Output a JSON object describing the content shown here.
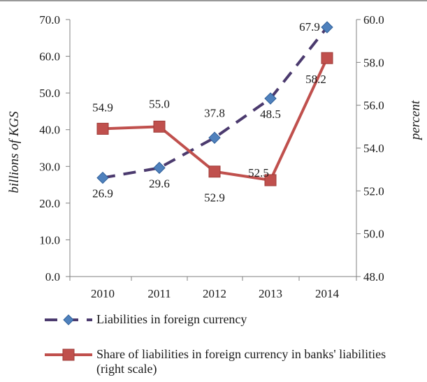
{
  "chart_data": {
    "type": "line",
    "categories": [
      "2010",
      "2011",
      "2012",
      "2013",
      "2014"
    ],
    "y_left": {
      "label": "billions of KGS",
      "lim": [
        0,
        70
      ],
      "ticks": [
        "0.0",
        "10.0",
        "20.0",
        "30.0",
        "40.0",
        "50.0",
        "60.0",
        "70.0"
      ]
    },
    "y_right": {
      "label": "percent",
      "lim": [
        48,
        60
      ],
      "ticks": [
        "48.0",
        "50.0",
        "52.0",
        "54.0",
        "56.0",
        "58.0",
        "60.0"
      ]
    },
    "series": [
      {
        "name": "Liabilities in foreign currency",
        "axis": "left",
        "values": [
          26.9,
          29.6,
          37.8,
          48.5,
          67.9
        ],
        "labels": [
          "26.9",
          "29.6",
          "37.8",
          "48.5",
          "67.9"
        ],
        "color": "#4b3a6e",
        "marker_color": "#4f81bd",
        "style": "dashed",
        "marker": "diamond"
      },
      {
        "name": "Share of liabilities in foreign currency in banks' liabilities (right scale)",
        "axis": "right",
        "values": [
          54.9,
          55.0,
          52.9,
          52.5,
          58.2
        ],
        "labels": [
          "54.9",
          "55.0",
          "52.9",
          "52.5",
          "58.2"
        ],
        "color": "#c0504d",
        "style": "solid",
        "marker": "square"
      }
    ],
    "legend_placement": "bottom",
    "grid": false
  }
}
